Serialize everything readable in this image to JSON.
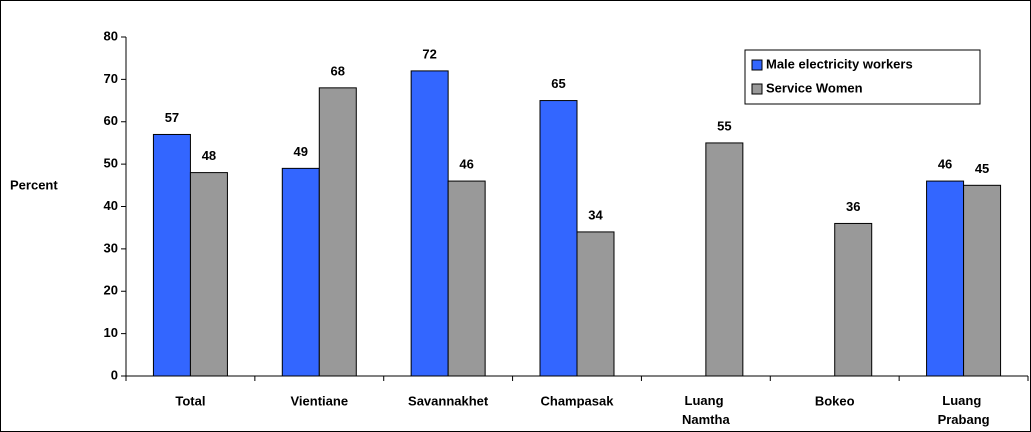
{
  "chart_data": {
    "type": "bar",
    "y_label": "Percent",
    "categories": [
      "Total",
      "Vientiane",
      "Savannakhet",
      "Champasak",
      "Luang Namtha",
      "Bokeo",
      "Luang Prabang"
    ],
    "series": [
      {
        "name": "Male electricity workers",
        "color": "#3366ff",
        "values": [
          57,
          49,
          72,
          65,
          null,
          null,
          46
        ]
      },
      {
        "name": "Service Women",
        "color": "#999999",
        "values": [
          48,
          68,
          46,
          34,
          55,
          36,
          45
        ]
      }
    ],
    "ylim": [
      0,
      80
    ],
    "yticks": [
      0,
      10,
      20,
      30,
      40,
      50,
      60,
      70,
      80
    ],
    "legend": "top-right",
    "grid": false
  }
}
